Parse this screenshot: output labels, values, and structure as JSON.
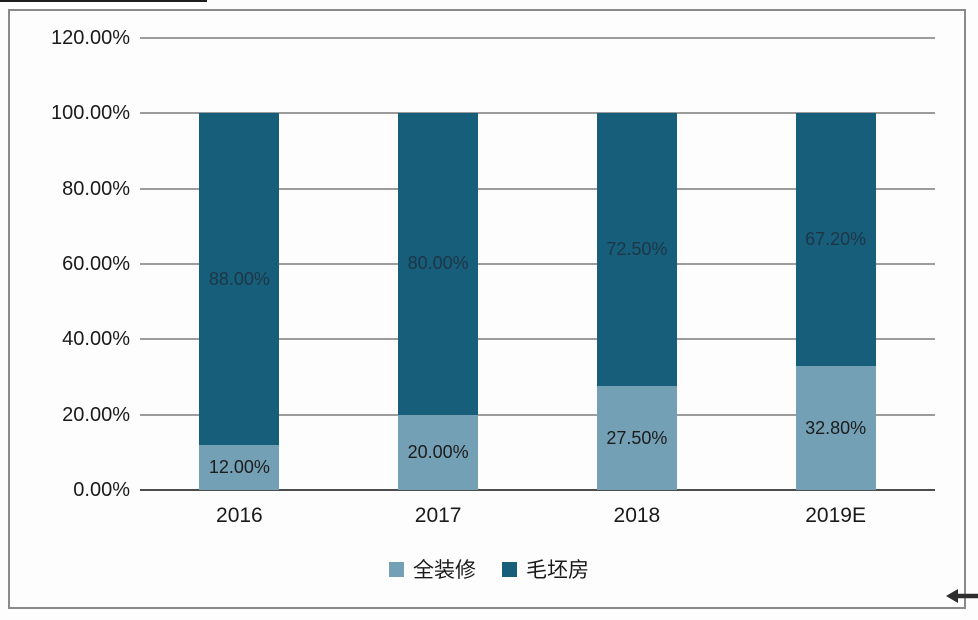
{
  "chart_data": {
    "type": "bar",
    "stacked": true,
    "title": "",
    "categories": [
      "2016",
      "2017",
      "2018",
      "2019E"
    ],
    "series": [
      {
        "name": "全装修",
        "color": "#74A0B6",
        "values": [
          12.0,
          20.0,
          27.5,
          32.8
        ],
        "data_labels": [
          "12.00%",
          "20.00%",
          "27.50%",
          "32.80%"
        ],
        "label_color": "#1c1c1c"
      },
      {
        "name": "毛坯房",
        "color": "#165E7A",
        "values": [
          88.0,
          80.0,
          72.5,
          67.2
        ],
        "data_labels": [
          "88.00%",
          "80.00%",
          "72.50%",
          "67.20%"
        ],
        "label_color": "#1e3647"
      }
    ],
    "y_axis": {
      "min": 0,
      "max": 120,
      "step": 20,
      "tick_labels": [
        "0.00%",
        "20.00%",
        "40.00%",
        "60.00%",
        "80.00%",
        "100.00%",
        "120.00%"
      ]
    },
    "x_axis": {
      "tick_labels": [
        "2016",
        "2017",
        "2018",
        "2019E"
      ]
    },
    "grid": true,
    "legend_position": "bottom",
    "colors": {
      "gridline": "#9c9c9c",
      "zero_line": "#4d4d4d",
      "frame_border": "#8a8a8a",
      "background": "#fdfdfd"
    }
  }
}
